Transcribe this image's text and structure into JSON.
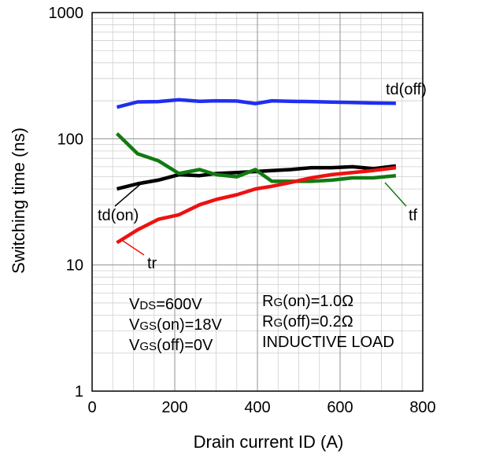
{
  "chart_data": {
    "type": "line",
    "xlabel": "Drain current ID (A)",
    "ylabel": "Switching time (ns)",
    "xlim": [
      0,
      800
    ],
    "ylim": [
      1,
      1000
    ],
    "yscale": "log",
    "x_ticks": [
      "0",
      "200",
      "400",
      "600",
      "800"
    ],
    "y_ticks": [
      "1",
      "10",
      "100",
      "1000"
    ],
    "grid": true,
    "series": [
      {
        "name": "td(off)",
        "color": "#1f2ff0",
        "x": [
          60,
          110,
          160,
          210,
          260,
          300,
          350,
          395,
          435,
          480,
          530,
          580,
          630,
          680,
          735
        ],
        "y": [
          178,
          196,
          197,
          204,
          198,
          200,
          199,
          190,
          200,
          198,
          197,
          195,
          194,
          192,
          191
        ]
      },
      {
        "name": "td(on)",
        "color": "#000000",
        "x": [
          60,
          110,
          160,
          210,
          260,
          300,
          350,
          395,
          435,
          480,
          530,
          580,
          630,
          680,
          735
        ],
        "y": [
          40,
          44,
          47,
          52,
          51,
          53,
          54,
          55,
          56,
          57,
          59,
          59,
          60,
          58,
          61
        ]
      },
      {
        "name": "tf",
        "color": "#117a11",
        "x": [
          60,
          110,
          160,
          210,
          260,
          300,
          350,
          395,
          435,
          480,
          530,
          580,
          630,
          680,
          735
        ],
        "y": [
          110,
          76,
          67,
          53,
          57,
          52,
          50,
          57,
          46,
          46,
          46,
          47,
          49,
          49,
          51
        ]
      },
      {
        "name": "tr",
        "color": "#ee1111",
        "x": [
          60,
          110,
          160,
          210,
          260,
          300,
          350,
          395,
          435,
          480,
          530,
          580,
          630,
          680,
          735
        ],
        "y": [
          15,
          19,
          23,
          25,
          30,
          33,
          36,
          40,
          42,
          45,
          49,
          52,
          54,
          56,
          59
        ]
      }
    ],
    "annotations": {
      "series_labels": [
        "td(off)",
        "td(on)",
        "tf",
        "tr"
      ],
      "conditions_left": [
        {
          "main": "V",
          "sub": "DS",
          "rest": "=600V"
        },
        {
          "main": "V",
          "sub": "GS",
          "rest": "(on)=18V"
        },
        {
          "main": "V",
          "sub": "GS",
          "rest": "(off)=0V"
        }
      ],
      "conditions_right": [
        {
          "main": "R",
          "sub": "G",
          "rest": "(on)=1.0Ω"
        },
        {
          "main": "R",
          "sub": "G",
          "rest": "(off)=0.2Ω"
        },
        {
          "main": "",
          "sub": "",
          "rest": "INDUCTIVE LOAD"
        }
      ]
    }
  }
}
